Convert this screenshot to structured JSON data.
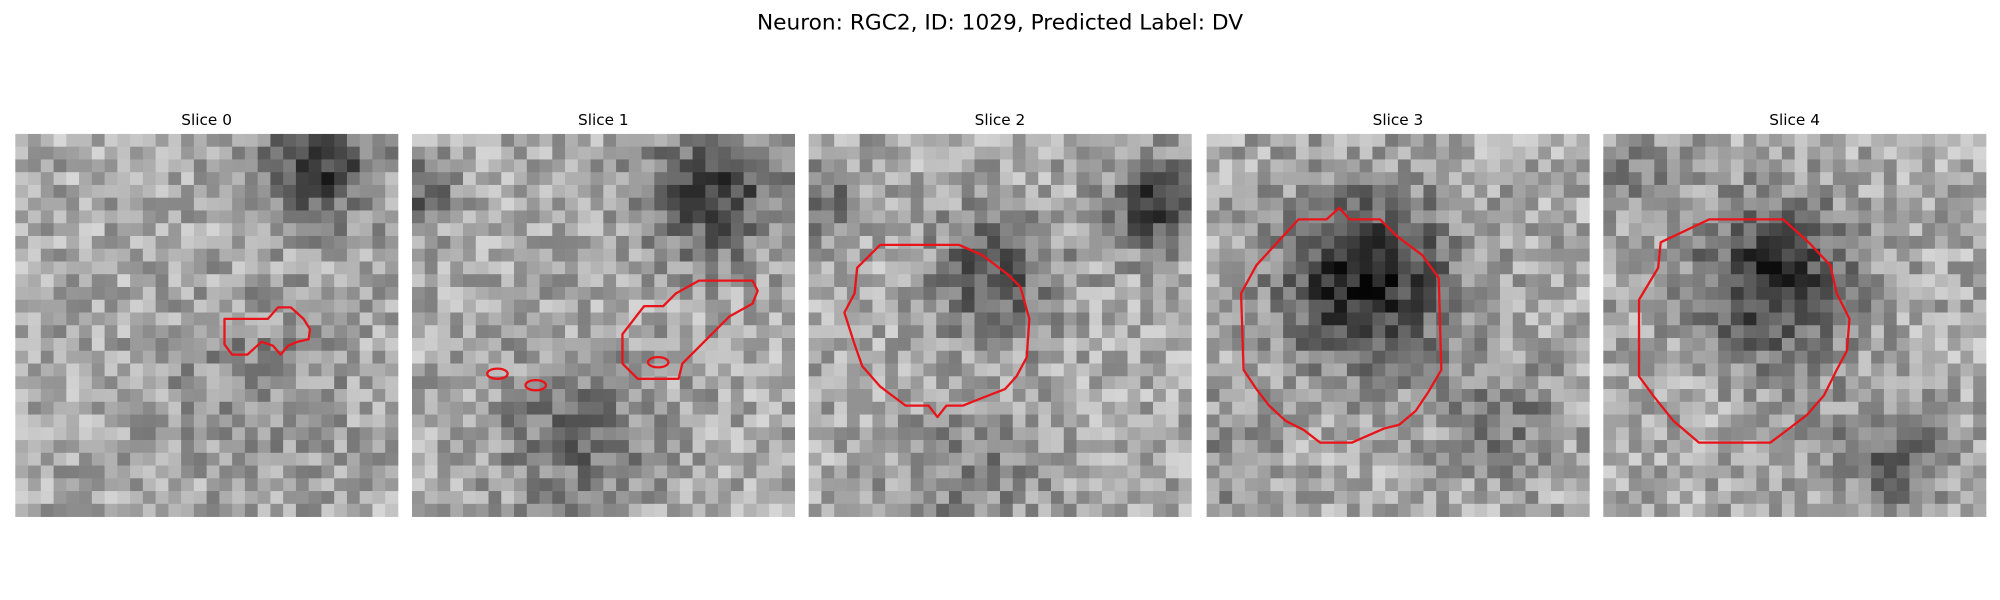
{
  "title": "Neuron: RGC2, ID: 1029, Predicted Label: DV",
  "panels": [
    {
      "title": "Slice 0"
    },
    {
      "title": "Slice 1"
    },
    {
      "title": "Slice 2"
    },
    {
      "title": "Slice 3"
    },
    {
      "title": "Slice 4"
    }
  ]
}
